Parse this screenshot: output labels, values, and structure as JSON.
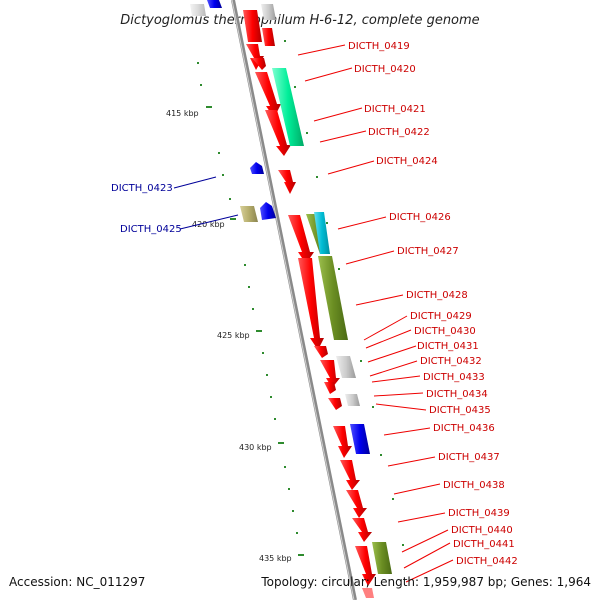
{
  "header": {
    "title": "Dictyoglomus thermophilum H-6-12, complete genome"
  },
  "footer": {
    "accession": "Accession: NC_011297",
    "topology": "Topology: circular; Length: 1,959,987 bp; Genes: 1,964"
  },
  "scale_labels": [
    "415 kbp",
    "420 kbp",
    "425 kbp",
    "430 kbp",
    "435 kbp"
  ],
  "genes": {
    "forward_strand": [
      {
        "label": "DICTH_0419"
      },
      {
        "label": "DICTH_0420"
      },
      {
        "label": "DICTH_0421"
      },
      {
        "label": "DICTH_0422"
      },
      {
        "label": "DICTH_0424"
      },
      {
        "label": "DICTH_0426"
      },
      {
        "label": "DICTH_0427"
      },
      {
        "label": "DICTH_0428"
      },
      {
        "label": "DICTH_0429"
      },
      {
        "label": "DICTH_0430"
      },
      {
        "label": "DICTH_0431"
      },
      {
        "label": "DICTH_0432"
      },
      {
        "label": "DICTH_0433"
      },
      {
        "label": "DICTH_0434"
      },
      {
        "label": "DICTH_0435"
      },
      {
        "label": "DICTH_0436"
      },
      {
        "label": "DICTH_0437"
      },
      {
        "label": "DICTH_0438"
      },
      {
        "label": "DICTH_0439"
      },
      {
        "label": "DICTH_0440"
      },
      {
        "label": "DICTH_0441"
      },
      {
        "label": "DICTH_0442"
      }
    ],
    "reverse_strand": [
      {
        "label": "DICTH_0423"
      },
      {
        "label": "DICTH_0425"
      }
    ]
  },
  "colors": {
    "forward_gene": "#ff0000",
    "reverse_gene": "#0000ee",
    "backbone": "#888888",
    "teal_feature": "#00ee99",
    "olive_feature": "#6b8e23",
    "khaki_feature": "#b5ad6b",
    "cyan_feature": "#00bcd4",
    "gray_feature": "#c8c8c8",
    "tick": "#2e8b2e",
    "forward_label": "#cc0000",
    "reverse_label": "#000099"
  }
}
